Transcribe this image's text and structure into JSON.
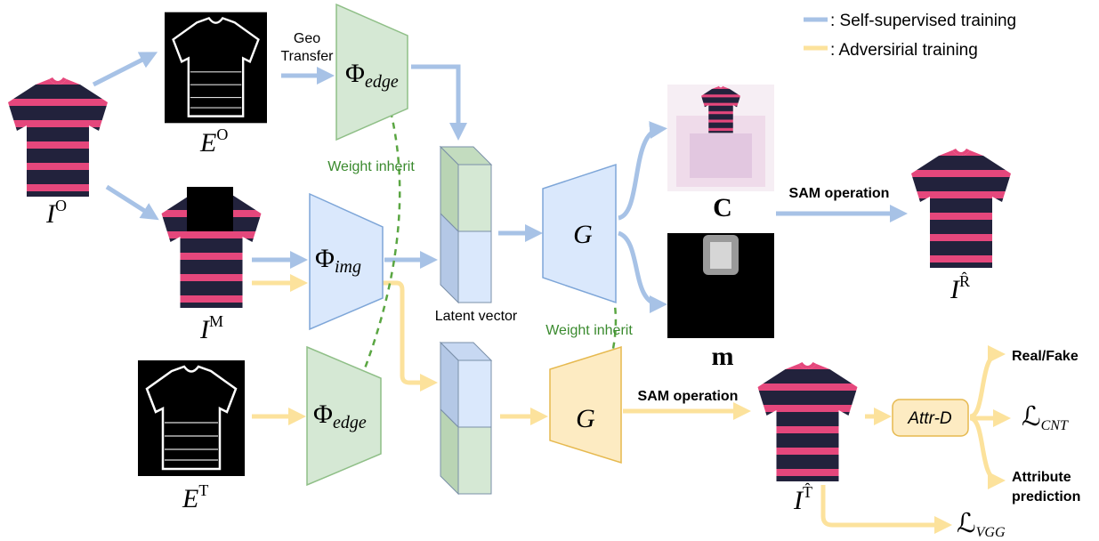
{
  "legend": [
    {
      "label": ": Self-supervised training"
    },
    {
      "label": ": Adversirial training"
    }
  ],
  "images": {
    "original": {
      "base": "I",
      "sup": "O"
    },
    "edge_original": {
      "base": "E",
      "sup": "O"
    },
    "masked": {
      "base": "I",
      "sup": "M"
    },
    "edge_target": {
      "base": "E",
      "sup": "T"
    },
    "color_output": {
      "label": "C"
    },
    "mask_output": {
      "label": "m"
    },
    "reconstructed": {
      "base": "I",
      "sup": "R̂"
    },
    "transferred": {
      "base": "I",
      "sup": "T̂"
    }
  },
  "nodes": {
    "edge_encoder_top": {
      "base": "Φ",
      "sub": "edge"
    },
    "image_encoder": {
      "base": "Φ",
      "sub": "img"
    },
    "edge_encoder_bottom": {
      "base": "Φ",
      "sub": "edge"
    },
    "generator_top": {
      "label": "G"
    },
    "generator_bottom": {
      "label": "G"
    },
    "latent": {
      "label": "Latent vector"
    },
    "discriminator": {
      "label": "Attr-D"
    }
  },
  "edges": {
    "geo_transfer": [
      "Geo",
      "Transfer"
    ],
    "weight_inherit_encoder": "Weight inherit",
    "weight_inherit_generator": "Weight inherit",
    "sam_top": "SAM operation",
    "sam_bottom": "SAM operation"
  },
  "outputs": {
    "real_fake": "Real/Fake",
    "content_loss": {
      "base": "ℒ",
      "sub": "CNT"
    },
    "attribute": [
      "Attribute",
      "prediction"
    ],
    "vgg_loss": {
      "base": "ℒ",
      "sub": "VGG"
    }
  }
}
